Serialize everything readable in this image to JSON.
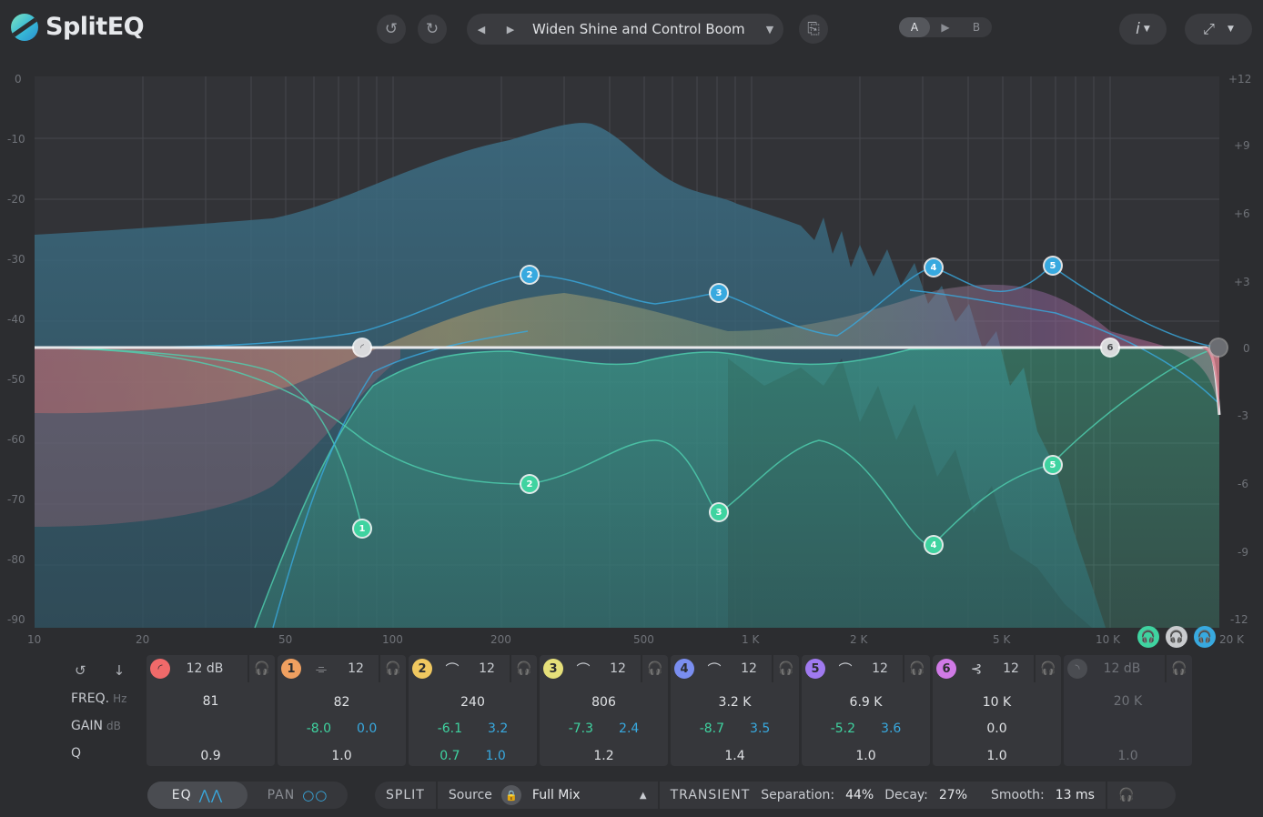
{
  "app": {
    "title": "SplitEQ",
    "preset_name": "Widen Shine and Control Boom",
    "undo_icon": "undo-icon",
    "redo_icon": "redo-icon",
    "ab": {
      "a": "A",
      "b": "B",
      "copy": "▶"
    },
    "info_label": "i"
  },
  "display": {
    "db_labels_left": [
      "0",
      "-10",
      "-20",
      "-30",
      "-40",
      "-50",
      "-60",
      "-70",
      "-80",
      "-90"
    ],
    "gain_labels_right": [
      "+12",
      "+9",
      "+6",
      "+3",
      "0",
      "-3",
      "-6",
      "-9",
      "-12"
    ],
    "freq_labels": [
      "10",
      "20",
      "50",
      "100",
      "200",
      "500",
      "1 K",
      "2 K",
      "5 K",
      "10 K",
      "20 K"
    ],
    "nodes": {
      "side": [
        "2",
        "3",
        "4",
        "5"
      ],
      "mid": [
        "1",
        "2",
        "3",
        "4",
        "5"
      ],
      "common": [
        "6"
      ]
    },
    "solo_buttons": [
      "mid-solo",
      "stereo-solo",
      "side-solo"
    ]
  },
  "colors": {
    "band_lowcut": "#f06a6a",
    "band1": "#f0a060",
    "band2": "#f0c860",
    "band3": "#e6e07a",
    "band4": "#7a8ef0",
    "band5": "#a07af0",
    "band6": "#d07ae6",
    "mid": "#3fd3a0",
    "side": "#38a9df"
  },
  "strip": {
    "row_labels": {
      "freq": "FREQ.",
      "freq_unit": "Hz",
      "gain": "GAIN",
      "gain_unit": "dB",
      "q": "Q"
    },
    "bands": [
      {
        "id": "",
        "slope": "12 dB",
        "freq": "81",
        "gain_mid": "",
        "gain_side": "",
        "q_mid": "0.9",
        "q_side": ""
      },
      {
        "id": "1",
        "slope": "12",
        "freq": "82",
        "gain_mid": "-8.0",
        "gain_side": "0.0",
        "q_mid": "1.0",
        "q_side": ""
      },
      {
        "id": "2",
        "slope": "12",
        "freq": "240",
        "gain_mid": "-6.1",
        "gain_side": "3.2",
        "q_mid": "0.7",
        "q_side": "1.0"
      },
      {
        "id": "3",
        "slope": "12",
        "freq": "806",
        "gain_mid": "-7.3",
        "gain_side": "2.4",
        "q_mid": "1.2",
        "q_side": ""
      },
      {
        "id": "4",
        "slope": "12",
        "freq": "3.2 K",
        "gain_mid": "-8.7",
        "gain_side": "3.5",
        "q_mid": "1.4",
        "q_side": ""
      },
      {
        "id": "5",
        "slope": "12",
        "freq": "6.9 K",
        "gain_mid": "-5.2",
        "gain_side": "3.6",
        "q_mid": "1.0",
        "q_side": ""
      },
      {
        "id": "6",
        "slope": "12",
        "freq": "10 K",
        "gain_mid": "0.0",
        "gain_side": "",
        "q_mid": "1.0",
        "q_side": ""
      },
      {
        "id": "",
        "slope": "12 dB",
        "freq": "20 K",
        "gain_mid": "",
        "gain_side": "",
        "q_mid": "1.0",
        "q_side": ""
      }
    ]
  },
  "bottom": {
    "eq_label": "EQ",
    "pan_label": "PAN",
    "split_label": "SPLIT",
    "source_label": "Source",
    "source_value": "Full Mix",
    "transient_label": "TRANSIENT",
    "separation_label": "Separation:",
    "separation_value": "44%",
    "decay_label": "Decay:",
    "decay_value": "27%",
    "smooth_label": "Smooth:",
    "smooth_value": "13 ms"
  }
}
